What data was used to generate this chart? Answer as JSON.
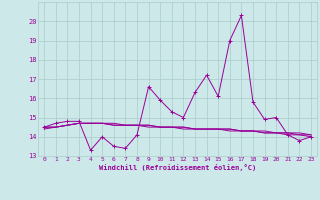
{
  "x": [
    0,
    1,
    2,
    3,
    4,
    5,
    6,
    7,
    8,
    9,
    10,
    11,
    12,
    13,
    14,
    15,
    16,
    17,
    18,
    19,
    20,
    21,
    22,
    23
  ],
  "line1": [
    14.5,
    14.7,
    14.8,
    14.8,
    13.3,
    14.0,
    13.5,
    13.4,
    14.1,
    16.6,
    15.9,
    15.3,
    15.0,
    16.3,
    17.2,
    16.1,
    19.0,
    20.3,
    15.8,
    14.9,
    15.0,
    14.1,
    13.8,
    14.0
  ],
  "line2": [
    14.4,
    14.5,
    14.6,
    14.7,
    14.7,
    14.7,
    14.7,
    14.6,
    14.6,
    14.6,
    14.5,
    14.5,
    14.5,
    14.4,
    14.4,
    14.4,
    14.4,
    14.3,
    14.3,
    14.3,
    14.2,
    14.2,
    14.2,
    14.1
  ],
  "line3": [
    14.5,
    14.5,
    14.6,
    14.7,
    14.7,
    14.7,
    14.6,
    14.6,
    14.6,
    14.6,
    14.5,
    14.5,
    14.5,
    14.4,
    14.4,
    14.4,
    14.4,
    14.3,
    14.3,
    14.2,
    14.2,
    14.2,
    14.1,
    14.1
  ],
  "line4": [
    14.5,
    14.5,
    14.6,
    14.7,
    14.7,
    14.7,
    14.6,
    14.6,
    14.6,
    14.5,
    14.5,
    14.5,
    14.4,
    14.4,
    14.4,
    14.4,
    14.3,
    14.3,
    14.3,
    14.2,
    14.2,
    14.1,
    14.1,
    14.0
  ],
  "color": "#990099",
  "bg_color": "#cce8e8",
  "grid_color": "#aacccc",
  "xlabel": "Windchill (Refroidissement éolien,°C)",
  "ylim": [
    13,
    21
  ],
  "xlim": [
    -0.5,
    23.5
  ],
  "yticks": [
    13,
    14,
    15,
    16,
    17,
    18,
    19,
    20
  ],
  "xticks": [
    0,
    1,
    2,
    3,
    4,
    5,
    6,
    7,
    8,
    9,
    10,
    11,
    12,
    13,
    14,
    15,
    16,
    17,
    18,
    19,
    20,
    21,
    22,
    23
  ]
}
